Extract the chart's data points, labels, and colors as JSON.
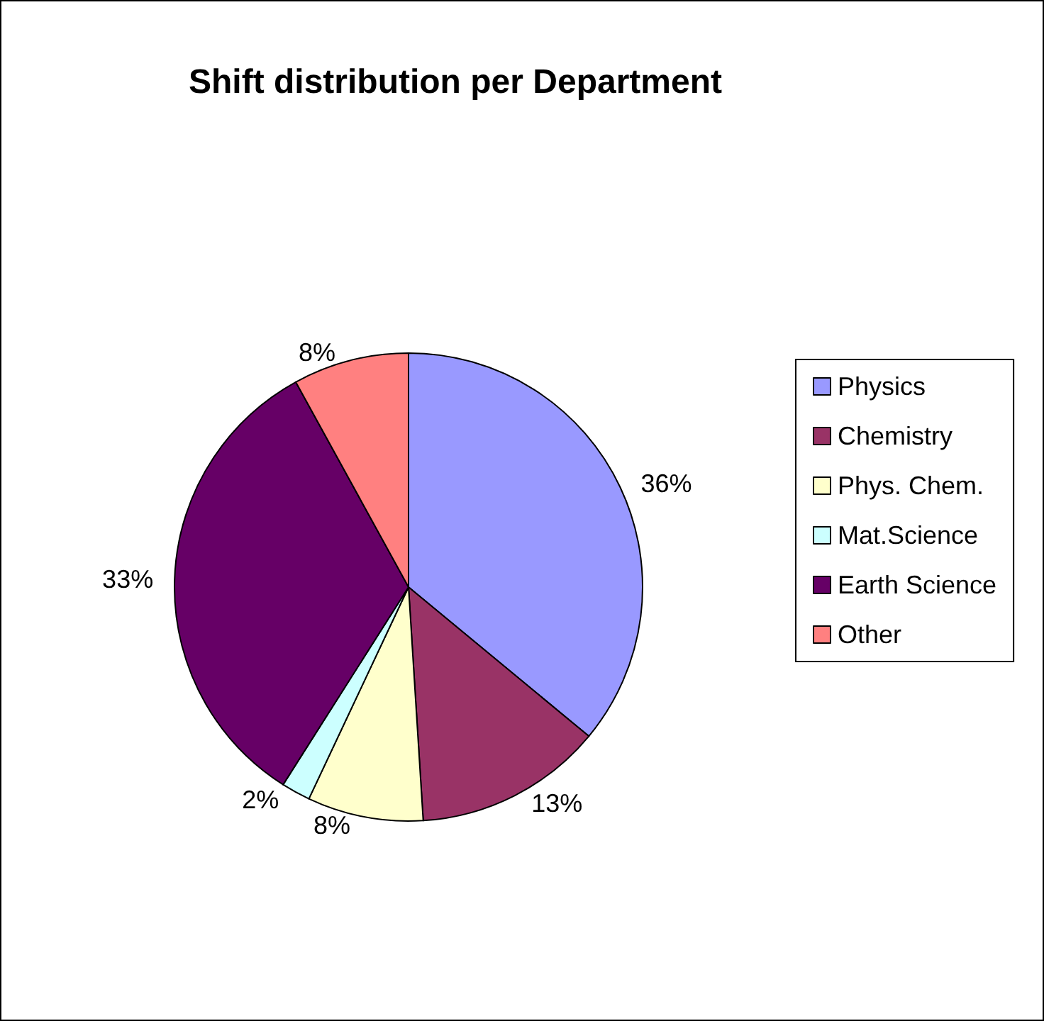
{
  "chart_data": {
    "type": "pie",
    "title": "Shift distribution per Department",
    "categories": [
      "Physics",
      "Chemistry",
      "Phys. Chem.",
      "Mat.Science",
      "Earth Science",
      "Other"
    ],
    "values": [
      36,
      13,
      8,
      2,
      33,
      8
    ],
    "colors": [
      "#9999ff",
      "#993366",
      "#ffffcc",
      "#ccffff",
      "#660066",
      "#ff8080"
    ],
    "value_labels": [
      "36%",
      "13%",
      "8%",
      "2%",
      "33%",
      "8%"
    ],
    "legend": "right"
  }
}
